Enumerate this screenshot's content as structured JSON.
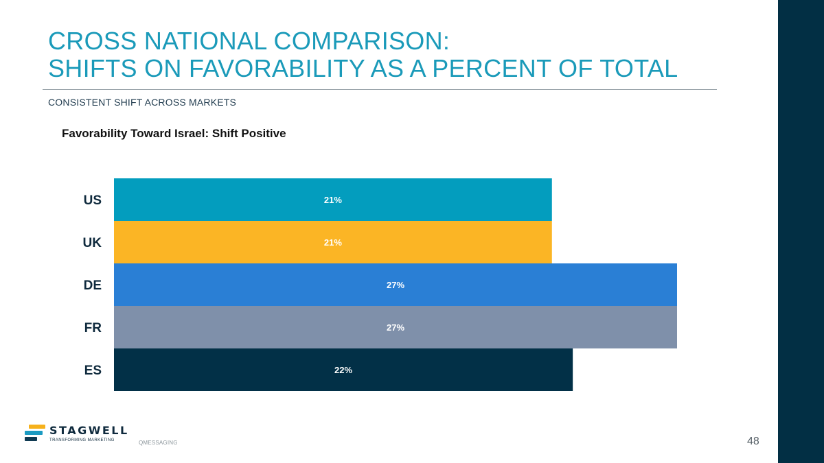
{
  "slide": {
    "title_line1": "CROSS NATIONAL COMPARISON:",
    "title_line2": "SHIFTS ON FAVORABILITY AS A PERCENT OF TOTAL",
    "subtitle": "CONSISTENT SHIFT ACROSS MARKETS",
    "page_number": "48",
    "footer_tag": "QMESSAGING"
  },
  "logo": {
    "name": "STAGWELL",
    "tagline": "TRANSFORMING MARKETING"
  },
  "colors": {
    "title": "#1a9ab9",
    "band": "#022f44"
  },
  "chart_data": {
    "type": "bar",
    "orientation": "horizontal",
    "title": "Favorability Toward Israel: Shift Positive",
    "categories": [
      "US",
      "UK",
      "DE",
      "FR",
      "ES"
    ],
    "values": [
      21,
      21,
      27,
      27,
      22
    ],
    "value_labels": [
      "21%",
      "21%",
      "27%",
      "27%",
      "22%"
    ],
    "colors": [
      "#039dbe",
      "#fbb525",
      "#2a7fd5",
      "#7f90aa",
      "#023047"
    ],
    "xlabel": "",
    "ylabel": "",
    "xlim": [
      0,
      27
    ],
    "grid": false,
    "legend": "none"
  }
}
